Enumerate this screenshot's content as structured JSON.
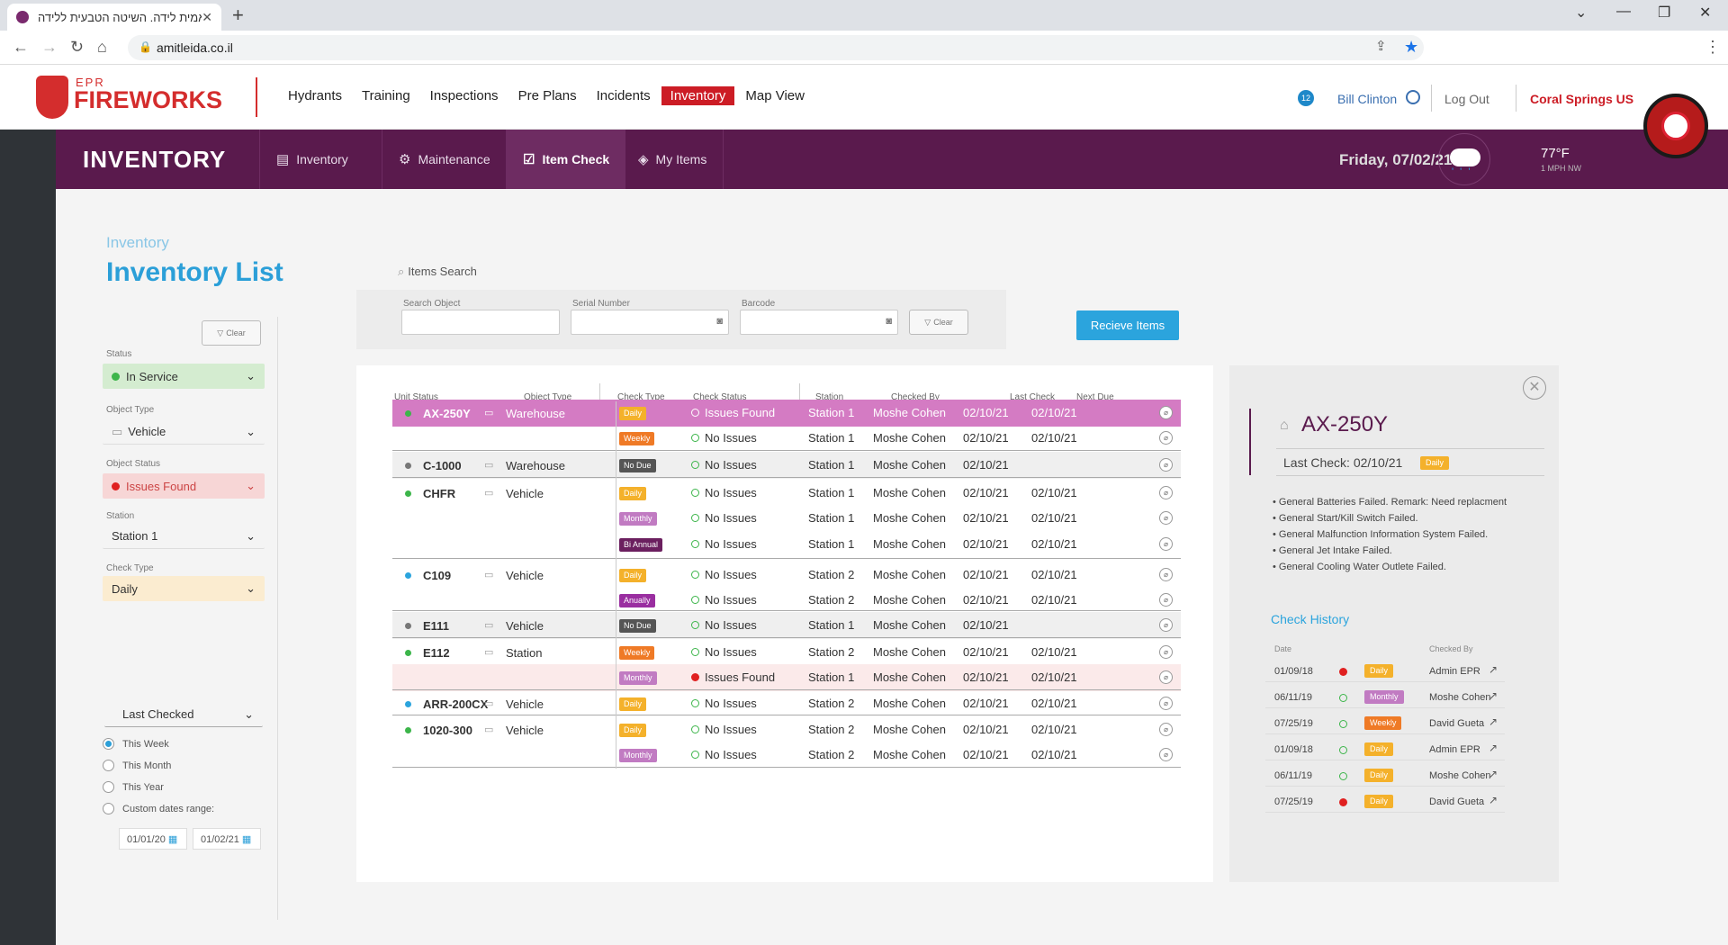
{
  "browser": {
    "tab_title": "אמית לידה. השיטה הטבעית ללידה",
    "url": "amitleida.co.il"
  },
  "header": {
    "logo_small": "EPR",
    "logo_big": "FIREWORKS",
    "nav": [
      "Hydrants",
      "Training",
      "Inspections",
      "Pre Plans",
      "Incidents",
      "Inventory",
      "Map View"
    ],
    "active_nav": "Inventory",
    "notifications": "12",
    "user": "Bill Clinton",
    "logout": "Log Out",
    "org": "Coral Springs US"
  },
  "subbar": {
    "title": "INVENTORY",
    "tabs": [
      {
        "label": "Inventory",
        "icon": "list-icon"
      },
      {
        "label": "Maintenance",
        "icon": "gear-icon"
      },
      {
        "label": "Item Check",
        "icon": "checklist-icon"
      },
      {
        "label": "My Items",
        "icon": "box-icon"
      }
    ],
    "date": "Friday, 07/02/21",
    "temp": "77°F",
    "wind": "1 MPH NW"
  },
  "page": {
    "breadcrumb": "Inventory",
    "title": "Inventory List"
  },
  "filters": {
    "clear": "Clear",
    "status_label": "Status",
    "status_value": "In Service",
    "object_type_label": "Object Type",
    "object_type_value": "Vehicle",
    "object_status_label": "Object Status",
    "object_status_value": "Issues Found",
    "station_label": "Station",
    "station_value": "Station 1",
    "check_type_label": "Check Type",
    "check_type_value": "Daily",
    "last_checked": "Last Checked",
    "radios": [
      "This Week",
      "This Month",
      "This Year",
      "Custom dates range:"
    ],
    "date_from": "01/01/20",
    "date_to": "01/02/21"
  },
  "search": {
    "title": "Items Search",
    "search_object": "Search Object",
    "serial_number": "Serial Number",
    "barcode": "Barcode",
    "clear": "Clear",
    "receive": "Recieve Items"
  },
  "table": {
    "headers": [
      "Unit Status",
      "Object Type",
      "Check Type",
      "Check Status",
      "Station",
      "Checked By",
      "Last Check",
      "Next Due"
    ],
    "rows": [
      {
        "unit": "AX-250Y",
        "type": "Warehouse",
        "check": "Daily",
        "status": "Issues Found",
        "station": "Station 1",
        "by": "Moshe Cohen",
        "last": "02/10/21",
        "next": "02/10/21"
      },
      {
        "unit": "",
        "type": "",
        "check": "Weekly",
        "status": "No Issues",
        "station": "Station 1",
        "by": "Moshe Cohen",
        "last": "02/10/21",
        "next": "02/10/21"
      },
      {
        "unit": "C-1000",
        "type": "Warehouse",
        "check": "No Due",
        "status": "No Issues",
        "station": "Station 1",
        "by": "Moshe Cohen",
        "last": "02/10/21",
        "next": ""
      },
      {
        "unit": "CHFR",
        "type": "Vehicle",
        "check": "Daily",
        "status": "No Issues",
        "station": "Station 1",
        "by": "Moshe Cohen",
        "last": "02/10/21",
        "next": "02/10/21"
      },
      {
        "unit": "",
        "type": "",
        "check": "Monthly",
        "status": "No Issues",
        "station": "Station 1",
        "by": "Moshe Cohen",
        "last": "02/10/21",
        "next": "02/10/21"
      },
      {
        "unit": "",
        "type": "",
        "check": "Bi Annual",
        "status": "No Issues",
        "station": "Station 1",
        "by": "Moshe Cohen",
        "last": "02/10/21",
        "next": "02/10/21"
      },
      {
        "unit": "C109",
        "type": "Vehicle",
        "check": "Daily",
        "status": "No Issues",
        "station": "Station 2",
        "by": "Moshe Cohen",
        "last": "02/10/21",
        "next": "02/10/21"
      },
      {
        "unit": "",
        "type": "",
        "check": "Anually",
        "status": "No Issues",
        "station": "Station 2",
        "by": "Moshe Cohen",
        "last": "02/10/21",
        "next": "02/10/21"
      },
      {
        "unit": "E111",
        "type": "Vehicle",
        "check": "No Due",
        "status": "No Issues",
        "station": "Station 1",
        "by": "Moshe Cohen",
        "last": "02/10/21",
        "next": ""
      },
      {
        "unit": "E112",
        "type": "Station",
        "check": "Weekly",
        "status": "No Issues",
        "station": "Station 2",
        "by": "Moshe Cohen",
        "last": "02/10/21",
        "next": "02/10/21"
      },
      {
        "unit": "",
        "type": "",
        "check": "Monthly",
        "status": "Issues Found",
        "station": "Station 1",
        "by": "Moshe Cohen",
        "last": "02/10/21",
        "next": "02/10/21"
      },
      {
        "unit": "ARR-200CX",
        "type": "Vehicle",
        "check": "Daily",
        "status": "No Issues",
        "station": "Station 2",
        "by": "Moshe Cohen",
        "last": "02/10/21",
        "next": "02/10/21"
      },
      {
        "unit": "1020-300",
        "type": "Vehicle",
        "check": "Daily",
        "status": "No Issues",
        "station": "Station 2",
        "by": "Moshe Cohen",
        "last": "02/10/21",
        "next": "02/10/21"
      },
      {
        "unit": "",
        "type": "",
        "check": "Monthly",
        "status": "No Issues",
        "station": "Station 2",
        "by": "Moshe Cohen",
        "last": "02/10/21",
        "next": "02/10/21"
      }
    ]
  },
  "detail": {
    "title": "AX-250Y",
    "last_check": "Last Check:  02/10/21",
    "check_type": "Daily",
    "notes": [
      "• General Batteries Failed. Remark: Need replacment",
      "• General Start/Kill Switch Failed.",
      "• General Malfunction Information System Failed.",
      "• General Jet Intake Failed.",
      "• General Cooling Water Outlete Failed."
    ],
    "history_title": "Check History",
    "history_headers": [
      "Date",
      "Checked By"
    ],
    "history": [
      {
        "date": "01/09/18",
        "type": "Daily",
        "by": "Admin EPR"
      },
      {
        "date": "06/11/19",
        "type": "Monthly",
        "by": "Moshe Cohen"
      },
      {
        "date": "07/25/19",
        "type": "Weekly",
        "by": "David Gueta"
      },
      {
        "date": "01/09/18",
        "type": "Daily",
        "by": "Admin EPR"
      },
      {
        "date": "06/11/19",
        "type": "Daily",
        "by": "Moshe Cohen"
      },
      {
        "date": "07/25/19",
        "type": "Daily",
        "by": "David Gueta"
      }
    ]
  }
}
